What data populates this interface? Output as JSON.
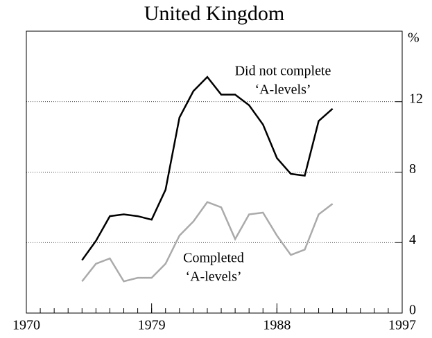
{
  "chart_data": {
    "type": "line",
    "title": "United Kingdom",
    "y_unit": "%",
    "x": [
      1974,
      1975,
      1976,
      1977,
      1978,
      1979,
      1980,
      1981,
      1982,
      1983,
      1984,
      1985,
      1986,
      1987,
      1988,
      1989,
      1990,
      1991,
      1992
    ],
    "series": [
      {
        "name": "Did not complete ‘A-levels’",
        "color": "#000000",
        "values": [
          3.0,
          4.1,
          5.5,
          5.6,
          5.5,
          5.3,
          7.0,
          11.1,
          12.6,
          13.4,
          12.4,
          12.4,
          11.8,
          10.7,
          8.8,
          7.9,
          7.8,
          10.9,
          11.6
        ]
      },
      {
        "name": "Completed ‘A-levels’",
        "color": "#aaaaaa",
        "values": [
          1.8,
          2.8,
          3.1,
          1.8,
          2.0,
          2.0,
          2.8,
          4.4,
          5.2,
          6.3,
          6.0,
          4.2,
          5.6,
          5.7,
          4.4,
          3.3,
          3.6,
          5.6,
          6.2
        ]
      }
    ],
    "annotations": [
      {
        "lines": [
          "Did not complete",
          "‘A-levels’"
        ]
      },
      {
        "lines": [
          "Completed",
          "‘A-levels’"
        ]
      }
    ],
    "xlim": [
      1970,
      1997
    ],
    "xticks": [
      1970,
      1979,
      1988,
      1997
    ],
    "ylim": [
      0,
      16
    ],
    "yticks": [
      0,
      4,
      8,
      12
    ],
    "grid": true
  }
}
